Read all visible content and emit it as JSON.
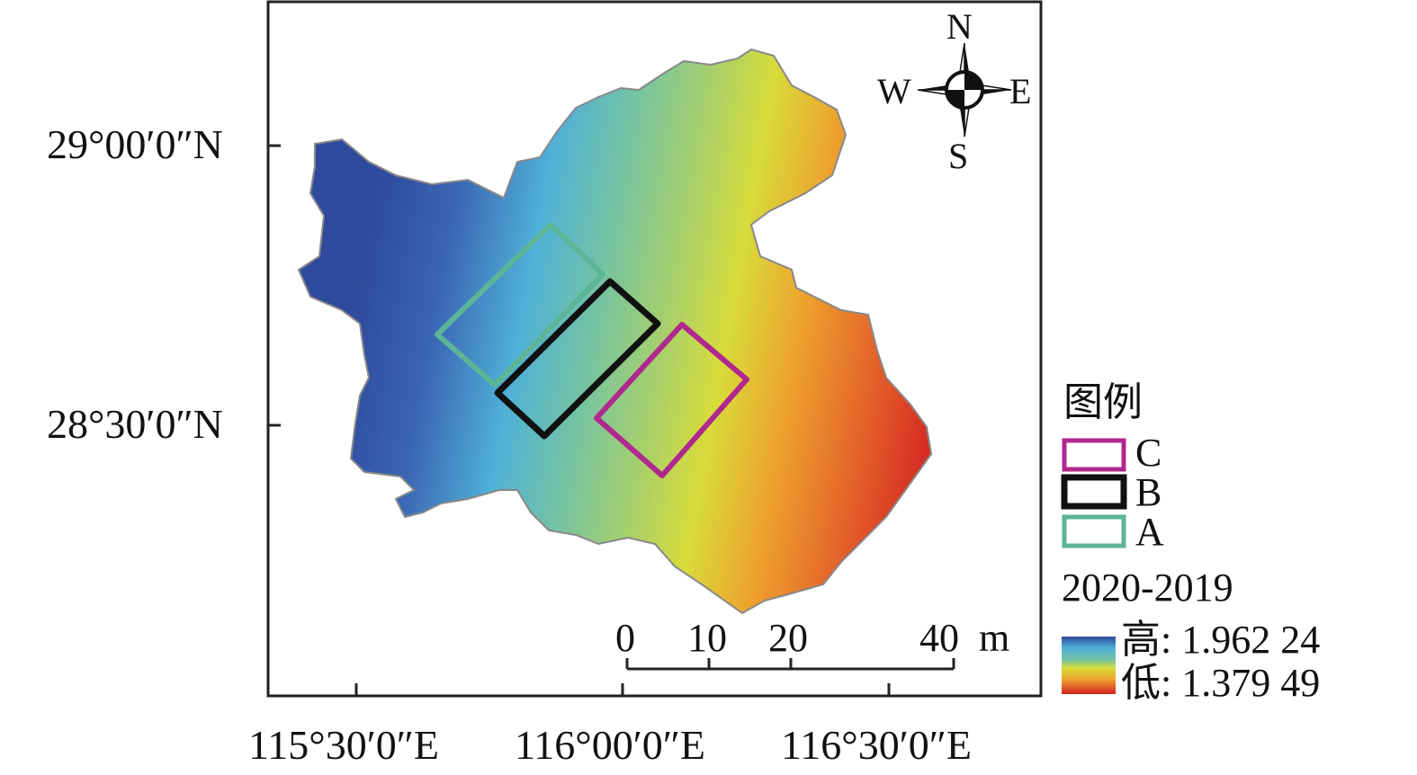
{
  "axes": {
    "y_labels": [
      "29°00′0″N",
      "28°30′0″N"
    ],
    "x_labels": [
      "115°30′0″E",
      "116°00′0″E",
      "116°30′0″E"
    ]
  },
  "compass": {
    "n": "N",
    "s": "S",
    "w": "W",
    "e": "E"
  },
  "scale_bar": {
    "ticks": [
      "0",
      "10",
      "20",
      "40"
    ],
    "unit": "m"
  },
  "legend": {
    "title": "图例",
    "items": [
      {
        "label": "C",
        "color": "#b0288f"
      },
      {
        "label": "B",
        "color": "#111111"
      },
      {
        "label": "A",
        "color": "#5bb596"
      }
    ],
    "period": "2020-2019",
    "high_label": "高: 1.962 24",
    "low_label": "低: 1.379 49",
    "high_value": 1.96224,
    "low_value": 1.37949
  },
  "colors": {
    "ramp": [
      "#2e4a9c",
      "#3b66b4",
      "#4fb0d8",
      "#74c3a3",
      "#a8d06a",
      "#d8dc3a",
      "#eea12d",
      "#e4622a",
      "#d42222"
    ]
  }
}
